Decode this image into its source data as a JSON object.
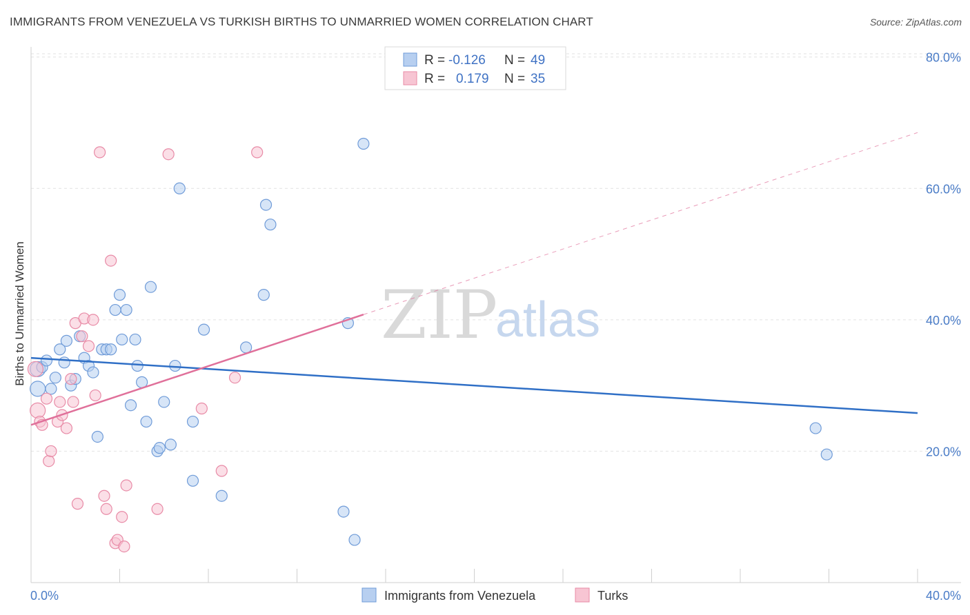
{
  "title": "IMMIGRANTS FROM VENEZUELA VS TURKISH BIRTHS TO UNMARRIED WOMEN CORRELATION CHART",
  "source": "Source: ZipAtlas.com",
  "watermark": {
    "zip": "ZIP",
    "atlas": "atlas"
  },
  "colors": {
    "blue_fill": "#b7cff0",
    "blue_stroke": "#6f9bd8",
    "blue_line": "#2f6fc6",
    "pink_fill": "#f7c5d3",
    "pink_stroke": "#e88aa6",
    "pink_line": "#e0709a",
    "tick_text": "#4a7cc7",
    "grid": "#e2e2e2"
  },
  "legend": {
    "rows": [
      {
        "r_label": "R =",
        "r_value": "-0.126",
        "n_label": "N =",
        "n_value": "49",
        "swatch": "blue"
      },
      {
        "r_label": "R =",
        "r_value": "0.179",
        "n_label": "N =",
        "n_value": "35",
        "swatch": "pink"
      }
    ]
  },
  "chart_data": {
    "type": "scatter",
    "title": "IMMIGRANTS FROM VENEZUELA VS TURKISH BIRTHS TO UNMARRIED WOMEN CORRELATION CHART",
    "xlabel": "",
    "ylabel": "Births to Unmarried Women",
    "xlim": [
      0,
      40
    ],
    "ylim": [
      0,
      84
    ],
    "x_tick_labels": [
      "0.0%",
      "40.0%"
    ],
    "y_ticks": [
      20,
      40,
      60,
      80
    ],
    "y_tick_labels": [
      "20.0%",
      "40.0%",
      "60.0%",
      "80.0%"
    ],
    "grid": true,
    "legend_position": "top-center",
    "series": [
      {
        "name": "Immigrants from Venezuela",
        "color": "blue",
        "trend": {
          "x": [
            0,
            40
          ],
          "y": [
            34.2,
            25.8
          ],
          "dashed_extension": false
        },
        "points": [
          [
            0.3,
            32.5
          ],
          [
            0.3,
            29.5
          ],
          [
            0.5,
            32.8
          ],
          [
            0.7,
            33.8
          ],
          [
            0.9,
            29.5
          ],
          [
            1.1,
            31.2
          ],
          [
            1.3,
            35.5
          ],
          [
            1.5,
            33.5
          ],
          [
            1.6,
            36.8
          ],
          [
            1.8,
            30.0
          ],
          [
            2.0,
            31.0
          ],
          [
            2.2,
            37.5
          ],
          [
            2.4,
            34.2
          ],
          [
            2.6,
            33.0
          ],
          [
            2.8,
            32.0
          ],
          [
            3.0,
            22.2
          ],
          [
            3.2,
            35.5
          ],
          [
            3.4,
            35.5
          ],
          [
            3.6,
            35.5
          ],
          [
            3.8,
            41.5
          ],
          [
            4.0,
            43.8
          ],
          [
            4.1,
            37.0
          ],
          [
            4.3,
            41.5
          ],
          [
            4.5,
            27.0
          ],
          [
            4.7,
            37.0
          ],
          [
            4.8,
            33.0
          ],
          [
            5.0,
            30.5
          ],
          [
            5.2,
            24.5
          ],
          [
            5.4,
            45.0
          ],
          [
            5.7,
            20.0
          ],
          [
            5.8,
            20.5
          ],
          [
            6.0,
            27.5
          ],
          [
            6.3,
            21.0
          ],
          [
            6.5,
            33.0
          ],
          [
            6.7,
            60.0
          ],
          [
            7.3,
            15.5
          ],
          [
            7.3,
            24.5
          ],
          [
            7.8,
            38.5
          ],
          [
            8.6,
            13.2
          ],
          [
            9.7,
            35.8
          ],
          [
            10.5,
            43.8
          ],
          [
            10.6,
            57.5
          ],
          [
            10.8,
            54.5
          ],
          [
            14.1,
            10.8
          ],
          [
            14.3,
            39.5
          ],
          [
            14.6,
            6.5
          ],
          [
            15.0,
            66.8
          ],
          [
            35.4,
            23.5
          ],
          [
            35.9,
            19.5
          ]
        ]
      },
      {
        "name": "Turks",
        "color": "pink",
        "trend": {
          "x": [
            0,
            15
          ],
          "y": [
            24.0,
            40.8
          ],
          "dashed_to": {
            "x": 40,
            "y": 68.5
          }
        },
        "points": [
          [
            0.2,
            32.5
          ],
          [
            0.3,
            26.2
          ],
          [
            0.4,
            24.5
          ],
          [
            0.5,
            24.0
          ],
          [
            0.7,
            28.0
          ],
          [
            0.8,
            18.5
          ],
          [
            0.9,
            20.0
          ],
          [
            1.2,
            24.5
          ],
          [
            1.3,
            27.5
          ],
          [
            1.4,
            25.5
          ],
          [
            1.6,
            23.5
          ],
          [
            1.8,
            31.0
          ],
          [
            1.9,
            27.5
          ],
          [
            2.0,
            39.5
          ],
          [
            2.1,
            12.0
          ],
          [
            2.3,
            37.5
          ],
          [
            2.4,
            40.2
          ],
          [
            2.6,
            36.0
          ],
          [
            2.8,
            40.0
          ],
          [
            2.9,
            28.5
          ],
          [
            3.1,
            65.5
          ],
          [
            3.3,
            13.2
          ],
          [
            3.4,
            11.2
          ],
          [
            3.6,
            49.0
          ],
          [
            3.8,
            6.0
          ],
          [
            3.9,
            6.5
          ],
          [
            4.1,
            10.0
          ],
          [
            4.2,
            5.5
          ],
          [
            4.3,
            14.8
          ],
          [
            5.7,
            11.2
          ],
          [
            6.2,
            65.2
          ],
          [
            7.7,
            26.5
          ],
          [
            8.6,
            17.0
          ],
          [
            9.2,
            31.2
          ],
          [
            10.2,
            65.5
          ]
        ]
      }
    ]
  },
  "bottom_legend": [
    {
      "label": "Immigrants from Venezuela",
      "color": "blue"
    },
    {
      "label": "Turks",
      "color": "pink"
    }
  ]
}
